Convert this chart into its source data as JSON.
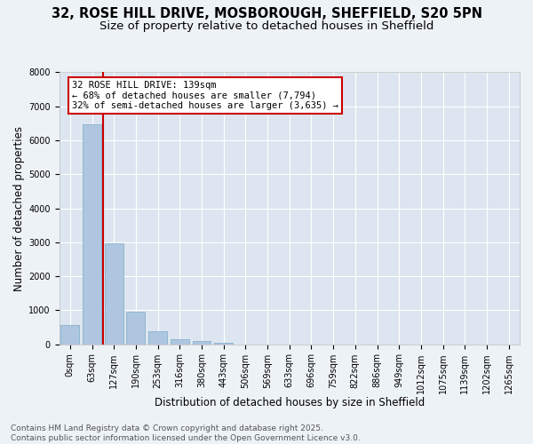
{
  "title_line1": "32, ROSE HILL DRIVE, MOSBOROUGH, SHEFFIELD, S20 5PN",
  "title_line2": "Size of property relative to detached houses in Sheffield",
  "xlabel": "Distribution of detached houses by size in Sheffield",
  "ylabel": "Number of detached properties",
  "bar_color": "#aec6e0",
  "bar_edge_color": "#7aaac8",
  "background_color": "#dde6f0",
  "fig_background": "#edf2f7",
  "categories": [
    "0sqm",
    "63sqm",
    "127sqm",
    "190sqm",
    "253sqm",
    "316sqm",
    "380sqm",
    "443sqm",
    "506sqm",
    "569sqm",
    "633sqm",
    "696sqm",
    "759sqm",
    "822sqm",
    "886sqm",
    "949sqm",
    "1012sqm",
    "1075sqm",
    "1139sqm",
    "1202sqm",
    "1265sqm"
  ],
  "values": [
    560,
    6480,
    2980,
    960,
    370,
    155,
    90,
    50,
    0,
    0,
    0,
    0,
    0,
    0,
    0,
    0,
    0,
    0,
    0,
    0,
    0
  ],
  "ylim": [
    0,
    8000
  ],
  "yticks": [
    0,
    1000,
    2000,
    3000,
    4000,
    5000,
    6000,
    7000,
    8000
  ],
  "property_vline_x": 1.5,
  "property_line_color": "#cc0000",
  "annotation_text": "32 ROSE HILL DRIVE: 139sqm\n← 68% of detached houses are smaller (7,794)\n32% of semi-detached houses are larger (3,635) →",
  "annotation_box_edgecolor": "#cc0000",
  "annotation_bg": "#ffffff",
  "footer_text": "Contains HM Land Registry data © Crown copyright and database right 2025.\nContains public sector information licensed under the Open Government Licence v3.0.",
  "title_fontsize": 10.5,
  "subtitle_fontsize": 9.5,
  "axis_label_fontsize": 8.5,
  "tick_fontsize": 7,
  "annot_fontsize": 7.5,
  "footer_fontsize": 6.5
}
